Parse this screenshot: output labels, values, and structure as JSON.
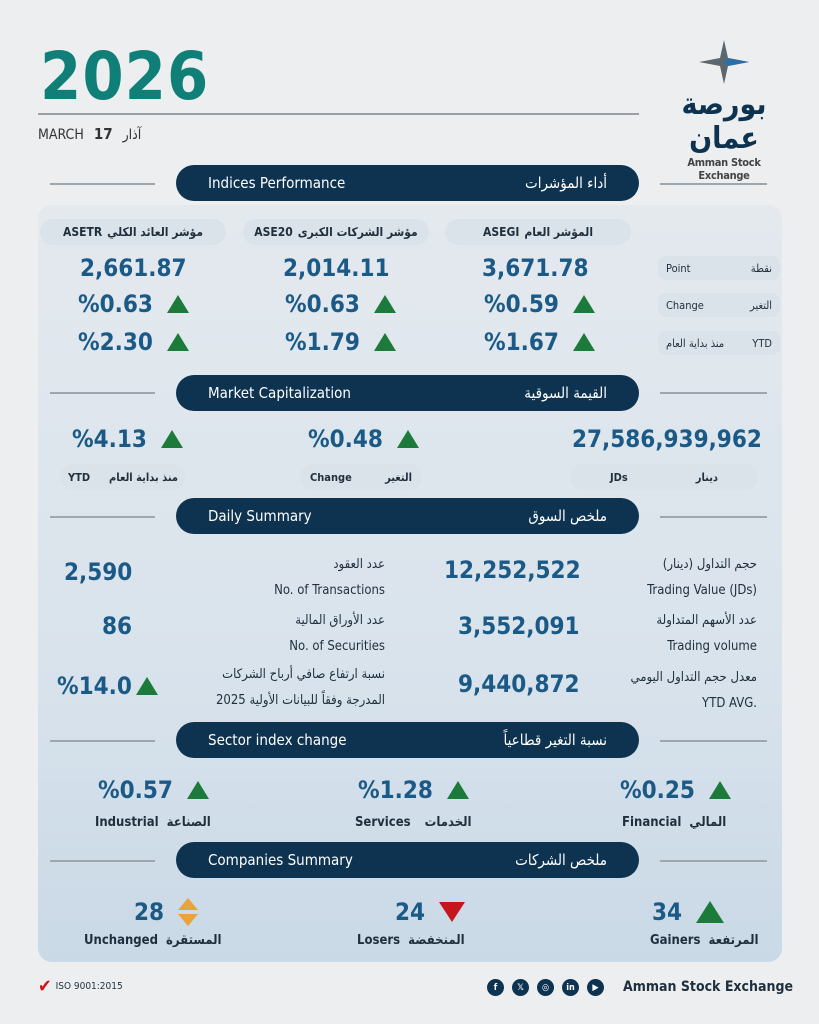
{
  "header": {
    "year": "2026",
    "month_en": "MARCH",
    "day": "17",
    "month_ar": "آذار"
  },
  "logo": {
    "ar": "بورصة عمان",
    "en": "Amman Stock Exchange"
  },
  "indices": {
    "title_en": "Indices Performance",
    "title_ar": "أداء المؤشرات",
    "row_labels": [
      {
        "en": "Point",
        "ar": "نقطة"
      },
      {
        "en": "Change",
        "ar": "التغير"
      },
      {
        "en": "YTD",
        "ar": "منذ بداية العام"
      }
    ],
    "columns": [
      {
        "code": "ASEGI",
        "name_ar": "المؤشر العام",
        "point": "3,671.78",
        "change": "%0.59",
        "ytd": "%1.67"
      },
      {
        "code": "ASE20",
        "name_ar": "مؤشر الشركات الكبرى",
        "point": "2,014.11",
        "change": "%0.63",
        "ytd": "%1.79"
      },
      {
        "code": "ASETR",
        "name_ar": "مؤشر العائد الكلي",
        "point": "2,661.87",
        "change": "%0.63",
        "ytd": "%2.30"
      }
    ]
  },
  "market_cap": {
    "title_en": "Market Capitalization",
    "title_ar": "القيمة السوقية",
    "value": "27,586,939,962",
    "value_en": "JDs",
    "value_ar": "دينار",
    "change": "%0.48",
    "change_en": "Change",
    "change_ar": "التغير",
    "ytd": "%4.13",
    "ytd_en": "YTD",
    "ytd_ar": "منذ بداية العام"
  },
  "daily": {
    "title_en": "Daily Summary",
    "title_ar": "ملخص السوق",
    "right": [
      {
        "ar": "حجم التداول (دينار)",
        "en": "Trading Value (JDs)",
        "value": "12,252,522"
      },
      {
        "ar": "عدد الأسهم المتداولة",
        "en": "Trading volume",
        "value": "3,552,091"
      },
      {
        "ar": "معدل حجم التداول اليومي",
        "en": "YTD AVG.",
        "value": "9,440,872"
      }
    ],
    "left": [
      {
        "ar": "عدد العقود",
        "en": "No. of Transactions",
        "value": "2,590"
      },
      {
        "ar": "عدد الأوراق المالية",
        "en": "No. of Securities",
        "value": "86"
      },
      {
        "ar": "نسبة ارتفاع صافي  أرباح الشركات",
        "en": "المدرجة وفقاً للبيانات الأولية 2025",
        "value": "%14.0"
      }
    ]
  },
  "sectors": {
    "title_en": "Sector index change",
    "title_ar": "نسبة التغير قطاعياً",
    "items": [
      {
        "en": "Financial",
        "ar": "المالي",
        "value": "%0.25"
      },
      {
        "en": "Services",
        "ar": "الخدمات",
        "value": "%1.28"
      },
      {
        "en": "Industrial",
        "ar": "الصناعة",
        "value": "%0.57"
      }
    ]
  },
  "companies": {
    "title_en": "Companies Summary",
    "title_ar": "ملخص الشركات",
    "items": [
      {
        "en": "Gainers",
        "ar": "المرتفعة",
        "value": "34"
      },
      {
        "en": "Losers",
        "ar": "المنخفضة",
        "value": "24"
      },
      {
        "en": "Unchanged",
        "ar": "المستقرة",
        "value": "28"
      }
    ]
  },
  "footer": {
    "iso": "ISO 9001:2015",
    "brand": "Amman Stock Exchange",
    "social": [
      "facebook-icon",
      "x-icon",
      "instagram-icon",
      "linkedin-icon",
      "youtube-icon"
    ]
  },
  "colors": {
    "teal": "#0f7f77",
    "navy": "#0d3350",
    "number": "#1b5a86",
    "up": "#1c7a3a",
    "down": "#c4161c",
    "unchanged": "#e8a33a"
  }
}
